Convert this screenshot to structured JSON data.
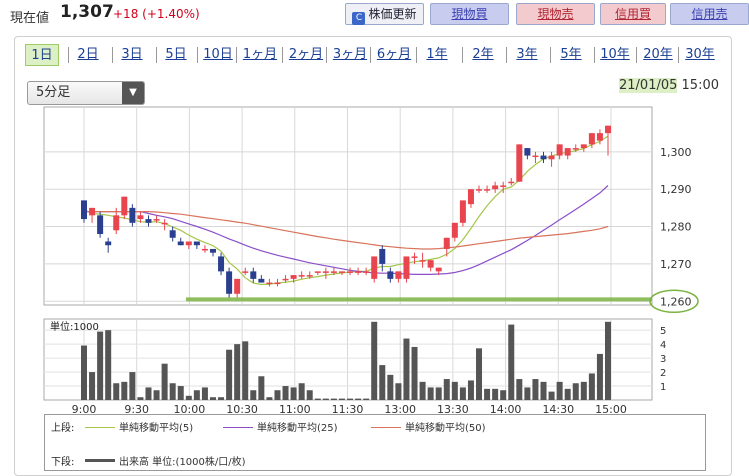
{
  "header": {
    "price_label": "現在値",
    "price_value": "1,307",
    "price_change": "+18 (+1.40%)",
    "refresh_label": "株価更新",
    "buttons": [
      "現物買",
      "現物売",
      "信用買",
      "信用売"
    ]
  },
  "tabs": [
    "1日",
    "2日",
    "3日",
    "5日",
    "10日",
    "1ヶ月",
    "2ヶ月",
    "3ヶ月",
    "6ヶ月",
    "1年",
    "2年",
    "3年",
    "5年",
    "10年",
    "20年",
    "30年"
  ],
  "active_tab": "1日",
  "interval_select": "5分足",
  "timestamp": {
    "date": "21/01/05",
    "time": "15:00"
  },
  "legend": {
    "upper_label": "上段:",
    "lower_label": "下段:",
    "ma5": "単純移動平均(5)",
    "ma25": "単純移動平均(25)",
    "ma50": "単純移動平均(50)",
    "volume": "出来高 単位:(1000株/口/枚)"
  },
  "colors": {
    "up": "#e8454f",
    "down": "#2a3f8f",
    "ma5": "#a5c64a",
    "ma25": "#8a4fc9",
    "ma50": "#d9735c",
    "volume": "#555555",
    "highlight": "#7cb342"
  },
  "chart_data": {
    "type": "candlestick",
    "price_axis": {
      "range": [
        1259,
        1312
      ],
      "ticks": [
        "1,260",
        "1,270",
        "1,280",
        "1,290",
        "1,300"
      ],
      "highlight_tick": "1,260"
    },
    "volume_axis": {
      "label": "単位:1000",
      "range": [
        0,
        5.8
      ],
      "ticks": [
        "1",
        "2",
        "3",
        "4",
        "5"
      ]
    },
    "x_ticks": [
      "9:00",
      "9:30",
      "10:00",
      "10:30",
      "11:00",
      "11:30",
      "13:00",
      "13:30",
      "14:00",
      "14:30",
      "15:00"
    ],
    "support_line": 1260.5,
    "candles": [
      [
        1287,
        1287,
        1281,
        1282,
        3.9
      ],
      [
        1283,
        1285,
        1281,
        1285,
        2.0
      ],
      [
        1283,
        1284,
        1277,
        1278,
        4.9
      ],
      [
        1276,
        1277,
        1273,
        1275,
        5.0
      ],
      [
        1279,
        1285,
        1278,
        1283,
        1.2
      ],
      [
        1283,
        1288,
        1282,
        1288,
        1.3
      ],
      [
        1285,
        1286,
        1280,
        1281,
        2.0
      ],
      [
        1282,
        1284,
        1281,
        1283,
        0.2
      ],
      [
        1282,
        1283,
        1280,
        1281,
        0.9
      ],
      [
        1282,
        1283,
        1281,
        1282,
        0.7
      ],
      [
        1281,
        1282,
        1279,
        1281,
        2.6
      ],
      [
        1279,
        1280,
        1276,
        1277,
        1.2
      ],
      [
        1276,
        1277,
        1275,
        1275,
        1.0
      ],
      [
        1275,
        1276,
        1274,
        1276,
        0.3
      ],
      [
        1276,
        1276,
        1274,
        1275,
        0.7
      ],
      [
        1274,
        1275,
        1273,
        1274,
        0.9
      ],
      [
        1274,
        1274,
        1272,
        1273,
        0.2
      ],
      [
        1272,
        1273,
        1267,
        1268,
        0.2
      ],
      [
        1268,
        1269,
        1261,
        1262,
        3.6
      ],
      [
        1262,
        1266,
        1261,
        1266,
        4.0
      ],
      [
        1268,
        1269,
        1267,
        1268,
        4.2
      ],
      [
        1268,
        1269,
        1265,
        1266,
        0.7
      ],
      [
        1266,
        1267,
        1265,
        1265,
        1.7
      ],
      [
        1265,
        1266,
        1264,
        1265,
        0.2
      ],
      [
        1265,
        1266,
        1264,
        1265,
        0.7
      ],
      [
        1266,
        1267,
        1265,
        1266,
        1.0
      ],
      [
        1266,
        1267,
        1265,
        1267,
        0.9
      ],
      [
        1267,
        1268,
        1266,
        1267,
        1.2
      ],
      [
        1267,
        1268,
        1266,
        1267,
        0.7
      ],
      [
        1268,
        1268,
        1267,
        1268,
        0.1
      ],
      [
        1268,
        1269,
        1266,
        1268,
        0.1
      ],
      [
        1268,
        1269,
        1267,
        1268,
        0.1
      ],
      [
        1268,
        1268,
        1267,
        1268,
        0.1
      ],
      [
        1268,
        1269,
        1267,
        1268,
        0.1
      ],
      [
        1268,
        1269,
        1267,
        1268,
        0.1
      ],
      [
        1268,
        1269,
        1267,
        1268,
        0.1
      ],
      [
        1266,
        1272,
        1265,
        1272,
        5.6
      ],
      [
        1274,
        1275,
        1268,
        1270,
        2.5
      ],
      [
        1268,
        1269,
        1265,
        1266,
        1.8
      ],
      [
        1266,
        1268,
        1265,
        1268,
        1.2
      ],
      [
        1266,
        1272,
        1265,
        1272,
        4.4
      ],
      [
        1272,
        1273,
        1270,
        1272,
        3.8
      ],
      [
        1271,
        1273,
        1269,
        1271,
        1.3
      ],
      [
        1269,
        1271,
        1268,
        1271,
        0.9
      ],
      [
        1268,
        1269,
        1267,
        1269,
        0.9
      ],
      [
        1274,
        1277,
        1272,
        1277,
        1.5
      ],
      [
        1277,
        1281,
        1276,
        1281,
        1.3
      ],
      [
        1281,
        1287,
        1280,
        1287,
        0.9
      ],
      [
        1286,
        1290,
        1285,
        1290,
        1.4
      ],
      [
        1290,
        1291,
        1289,
        1290,
        3.7
      ],
      [
        1290,
        1291,
        1289,
        1290,
        0.8
      ],
      [
        1290,
        1292,
        1289,
        1291,
        0.8
      ],
      [
        1291,
        1292,
        1289,
        1291,
        0.7
      ],
      [
        1292,
        1293,
        1291,
        1292,
        5.4
      ],
      [
        1292,
        1302,
        1292,
        1302,
        1.5
      ],
      [
        1301,
        1301,
        1298,
        1299,
        0.9
      ],
      [
        1299,
        1300,
        1297,
        1299,
        1.5
      ],
      [
        1299,
        1300,
        1297,
        1298,
        1.3
      ],
      [
        1298,
        1300,
        1296,
        1299,
        0.6
      ],
      [
        1299,
        1302,
        1298,
        1302,
        1.3
      ],
      [
        1299,
        1301,
        1298,
        1301,
        0.8
      ],
      [
        1301,
        1302,
        1300,
        1301,
        1.2
      ],
      [
        1301,
        1302,
        1300,
        1302,
        1.3
      ],
      [
        1302,
        1305,
        1301,
        1305,
        1.9
      ],
      [
        1303,
        1306,
        1302,
        1305,
        3.3
      ],
      [
        1305,
        1307,
        1299,
        1307,
        5.6
      ]
    ],
    "series": [
      {
        "name": "単純移動平均(5)",
        "color": "#a5c64a",
        "values": [
          1284.5,
          1283.5,
          1283.3,
          1283,
          1282.6,
          1282.3,
          1281.8,
          1281.3,
          1281.2,
          1281.3,
          1280.8,
          1279.9,
          1279.0,
          1277.7,
          1276.6,
          1275.7,
          1274.9,
          1273.4,
          1270.4,
          1268.6,
          1266.3,
          1264.9,
          1264.5,
          1264.6,
          1264.9,
          1265.1,
          1265.4,
          1265.9,
          1266.3,
          1266.6,
          1267,
          1267.3,
          1267.6,
          1267.8,
          1268,
          1268,
          1268.9,
          1269.3,
          1269.3,
          1269.8,
          1270.2,
          1270.6,
          1270.8,
          1271.2,
          1271.6,
          1272.6,
          1274.1,
          1276.5,
          1279.5,
          1282.7,
          1285.6,
          1288,
          1290,
          1290.6,
          1292.4,
          1294.8,
          1296.6,
          1298.1,
          1298.9,
          1299.5,
          1299.9,
          1300.3,
          1300.9,
          1301.9,
          1302.8,
          1304.2
        ]
      },
      {
        "name": "単純移動平均(25)",
        "color": "#8a4fc9",
        "values": [
          1284,
          1284,
          1284,
          1284,
          1284,
          1284,
          1284,
          1284,
          1283.5,
          1283,
          1282.6,
          1282.1,
          1281.4,
          1280.7,
          1280,
          1279.3,
          1278.5,
          1277.6,
          1276.7,
          1275.9,
          1275,
          1274.2,
          1273.5,
          1272.9,
          1272.3,
          1271.8,
          1271.3,
          1270.8,
          1270.3,
          1269.9,
          1269.5,
          1269.1,
          1268.7,
          1268.3,
          1268,
          1267.8,
          1267.6,
          1267.5,
          1267.5,
          1267.4,
          1267.3,
          1267.2,
          1267.2,
          1267.2,
          1267.3,
          1267.4,
          1267.7,
          1268.2,
          1268.9,
          1269.8,
          1270.8,
          1271.8,
          1272.8,
          1273.8,
          1275,
          1276.3,
          1277.6,
          1279,
          1280.4,
          1281.8,
          1283.2,
          1284.6,
          1286,
          1287.5,
          1289,
          1291
        ]
      },
      {
        "name": "単純移動平均(50)",
        "color": "#d9735c",
        "values": [
          1284,
          1284,
          1284,
          1284,
          1284,
          1284,
          1284,
          1284,
          1284,
          1283.9,
          1283.7,
          1283.5,
          1283.3,
          1283,
          1282.7,
          1282.4,
          1282.1,
          1281.8,
          1281.5,
          1281.2,
          1280.9,
          1280.5,
          1280.1,
          1279.7,
          1279.3,
          1278.9,
          1278.5,
          1278.1,
          1277.7,
          1277.3,
          1277,
          1276.6,
          1276.3,
          1276,
          1275.7,
          1275.4,
          1275.1,
          1274.8,
          1274.6,
          1274.4,
          1274.2,
          1274.1,
          1274,
          1274,
          1274.1,
          1274.3,
          1274.5,
          1274.8,
          1275.1,
          1275.4,
          1275.7,
          1276,
          1276.3,
          1276.6,
          1276.9,
          1277.1,
          1277.3,
          1277.5,
          1277.7,
          1277.9,
          1278.1,
          1278.4,
          1278.7,
          1279,
          1279.4,
          1280
        ]
      }
    ]
  }
}
